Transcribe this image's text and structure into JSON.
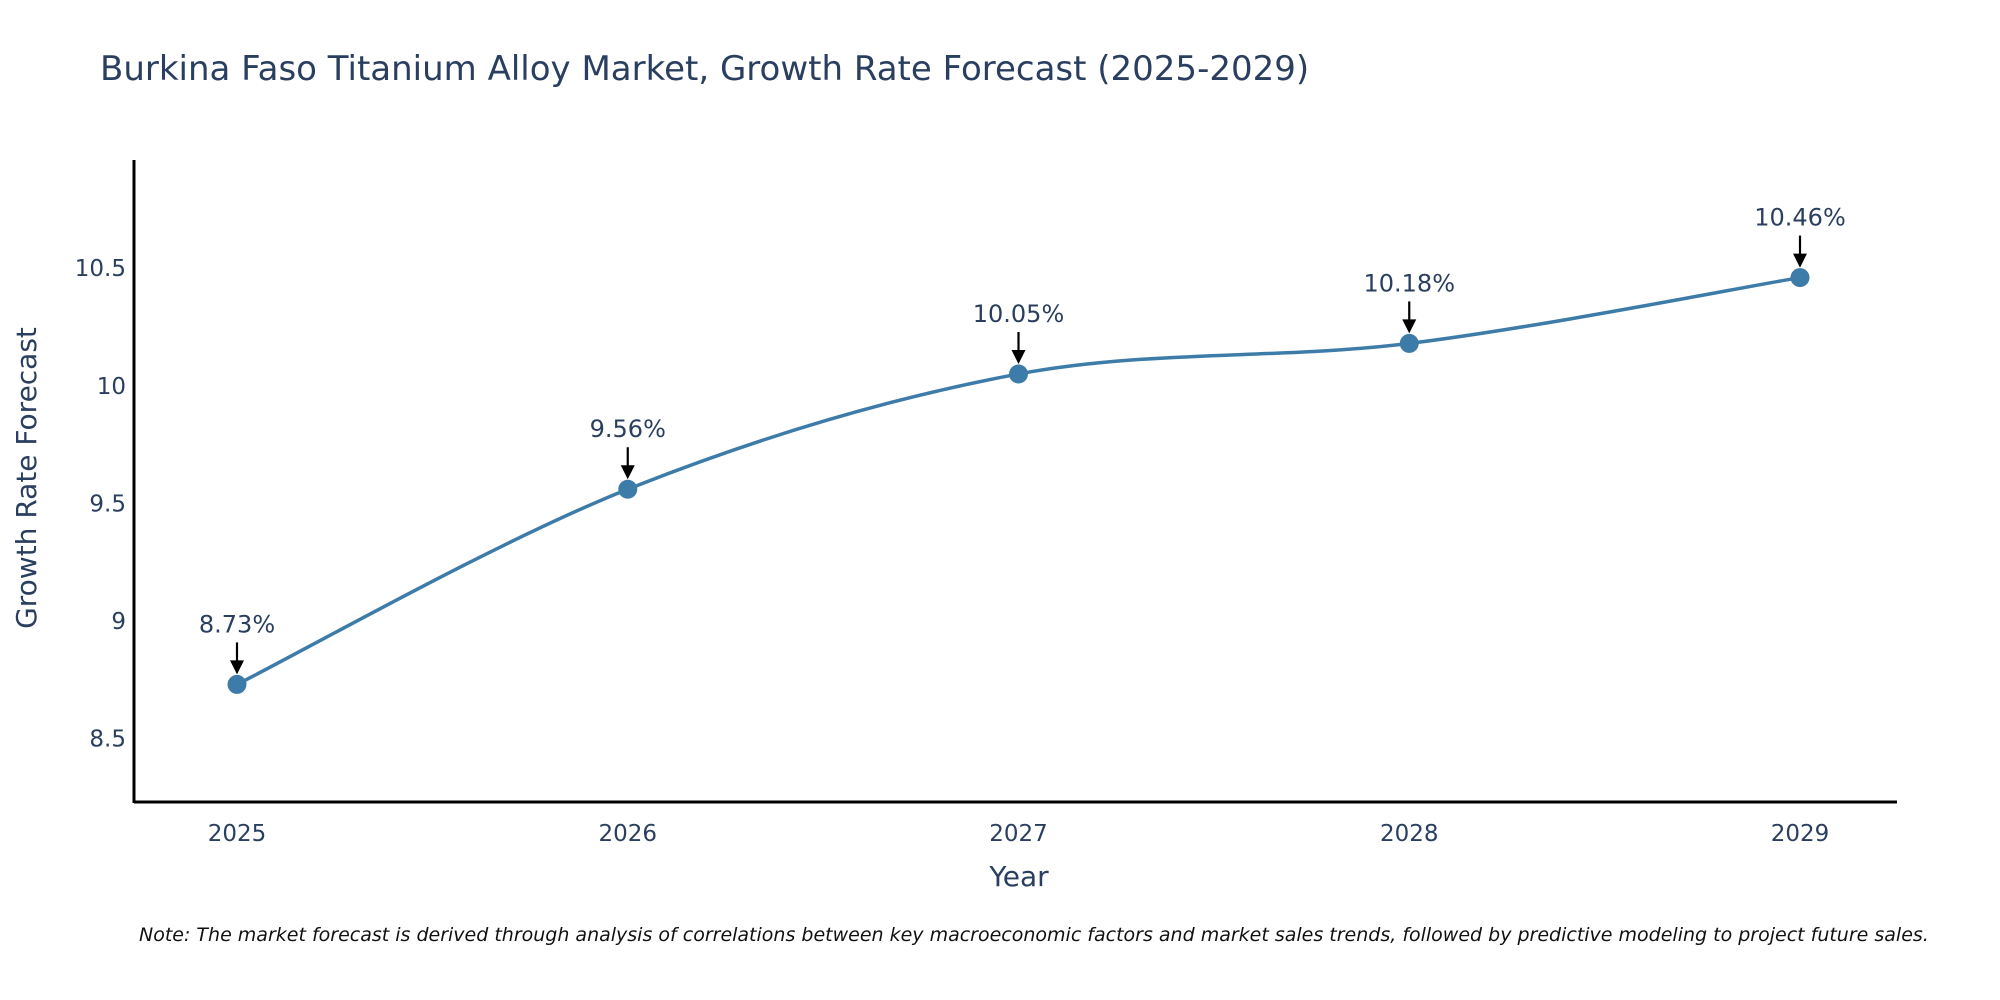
{
  "chart_data": {
    "type": "line",
    "title": "Burkina Faso Titanium Alloy Market, Growth Rate Forecast (2025-2029)",
    "xlabel": "Year",
    "ylabel": "Growth Rate Forecast",
    "categories": [
      "2025",
      "2026",
      "2027",
      "2028",
      "2029"
    ],
    "values": [
      8.73,
      9.56,
      10.05,
      10.18,
      10.46
    ],
    "data_labels": [
      "8.73%",
      "9.56%",
      "10.05%",
      "10.18%",
      "10.46%"
    ],
    "y_ticks": [
      8.5,
      9,
      9.5,
      10,
      10.5
    ],
    "y_tick_labels": [
      "8.5",
      "9",
      "9.5",
      "10",
      "10.5"
    ],
    "ylim": [
      8.23,
      10.96
    ],
    "grid": false,
    "legend": "none",
    "line_color": "#3d7ca8",
    "marker_color": "#3d7ca8",
    "axis_color": "#000000",
    "annotation_arrow_color": "#000000",
    "line_shape": "spline"
  },
  "note": "Note: The market forecast is derived through analysis of correlations between key macroeconomic factors and market sales trends, followed by predictive modeling to project future sales."
}
